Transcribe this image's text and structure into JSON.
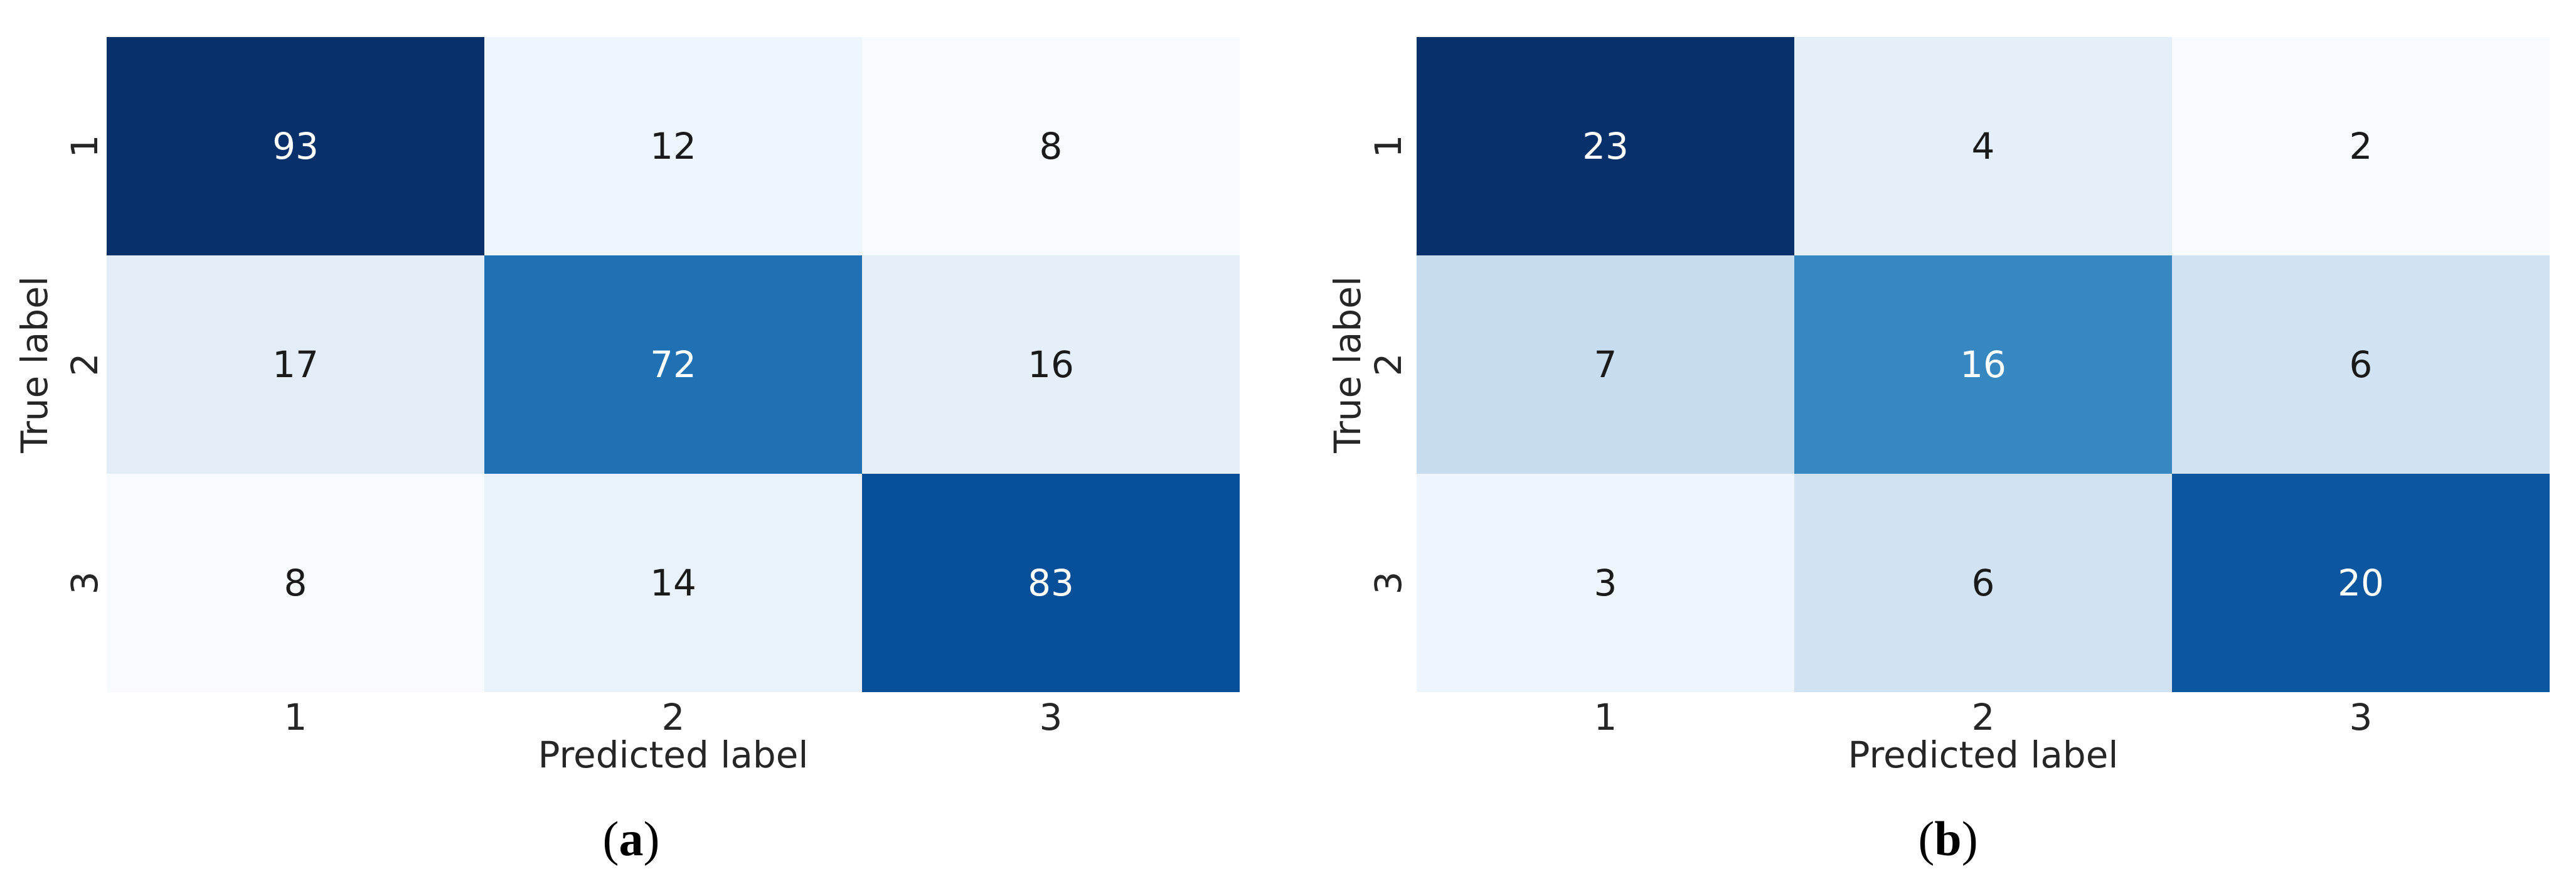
{
  "figure": {
    "background": "#ffffff",
    "axis_text_color": "#262626",
    "panels": [
      {
        "caption": {
          "open": "(",
          "letter": "a",
          "close": ")"
        },
        "ylabel": "True label",
        "xlabel": "Predicted label",
        "yticks": [
          "1",
          "2",
          "3"
        ],
        "xticks": [
          "1",
          "2",
          "3"
        ],
        "rows": [
          {
            "cells": [
              {
                "v": "93",
                "bg": "#08306b",
                "fg": "#ffffff"
              },
              {
                "v": "12",
                "bg": "#eef5fc",
                "fg": "#1a1a1a"
              },
              {
                "v": "8",
                "bg": "#f7fbff",
                "fg": "#1a1a1a"
              }
            ]
          },
          {
            "cells": [
              {
                "v": "17",
                "bg": "#e2edf8",
                "fg": "#1a1a1a"
              },
              {
                "v": "72",
                "bg": "#2070b4",
                "fg": "#ffffff"
              },
              {
                "v": "16",
                "bg": "#e4eff9",
                "fg": "#1a1a1a"
              }
            ]
          },
          {
            "cells": [
              {
                "v": "8",
                "bg": "#f7fbff",
                "fg": "#1a1a1a"
              },
              {
                "v": "14",
                "bg": "#e9f2fa",
                "fg": "#1a1a1a"
              },
              {
                "v": "83",
                "bg": "#084f99",
                "fg": "#ffffff"
              }
            ]
          }
        ]
      },
      {
        "caption": {
          "open": "(",
          "letter": "b",
          "close": ")"
        },
        "ylabel": "True label",
        "xlabel": "Predicted label",
        "yticks": [
          "1",
          "2",
          "3"
        ],
        "xticks": [
          "1",
          "2",
          "3"
        ],
        "rows": [
          {
            "cells": [
              {
                "v": "23",
                "bg": "#08306b",
                "fg": "#ffffff"
              },
              {
                "v": "4",
                "bg": "#e4eff9",
                "fg": "#1a1a1a"
              },
              {
                "v": "2",
                "bg": "#f7fbff",
                "fg": "#1a1a1a"
              }
            ]
          },
          {
            "cells": [
              {
                "v": "7",
                "bg": "#c8dcf0",
                "fg": "#1a1a1a"
              },
              {
                "v": "16",
                "bg": "#3787c0",
                "fg": "#ffffff"
              },
              {
                "v": "6",
                "bg": "#d1e3f3",
                "fg": "#1a1a1a"
              }
            ]
          },
          {
            "cells": [
              {
                "v": "3",
                "bg": "#eef5fc",
                "fg": "#1a1a1a"
              },
              {
                "v": "6",
                "bg": "#d1e3f3",
                "fg": "#1a1a1a"
              },
              {
                "v": "20",
                "bg": "#0c56a0",
                "fg": "#ffffff"
              }
            ]
          }
        ]
      }
    ]
  },
  "chart_data": [
    {
      "type": "heatmap",
      "panel": "(a)",
      "xlabel": "Predicted label",
      "ylabel": "True label",
      "x_categories": [
        "1",
        "2",
        "3"
      ],
      "y_categories": [
        "1",
        "2",
        "3"
      ],
      "values": [
        [
          93,
          12,
          8
        ],
        [
          17,
          72,
          16
        ],
        [
          8,
          14,
          83
        ]
      ],
      "colormap": "Blues",
      "vmin": 8,
      "vmax": 93,
      "annotated": true,
      "colorbar": false,
      "grid": false
    },
    {
      "type": "heatmap",
      "panel": "(b)",
      "xlabel": "Predicted label",
      "ylabel": "True label",
      "x_categories": [
        "1",
        "2",
        "3"
      ],
      "y_categories": [
        "1",
        "2",
        "3"
      ],
      "values": [
        [
          23,
          4,
          2
        ],
        [
          7,
          16,
          6
        ],
        [
          3,
          6,
          20
        ]
      ],
      "colormap": "Blues",
      "vmin": 2,
      "vmax": 23,
      "annotated": true,
      "colorbar": false,
      "grid": false
    }
  ]
}
